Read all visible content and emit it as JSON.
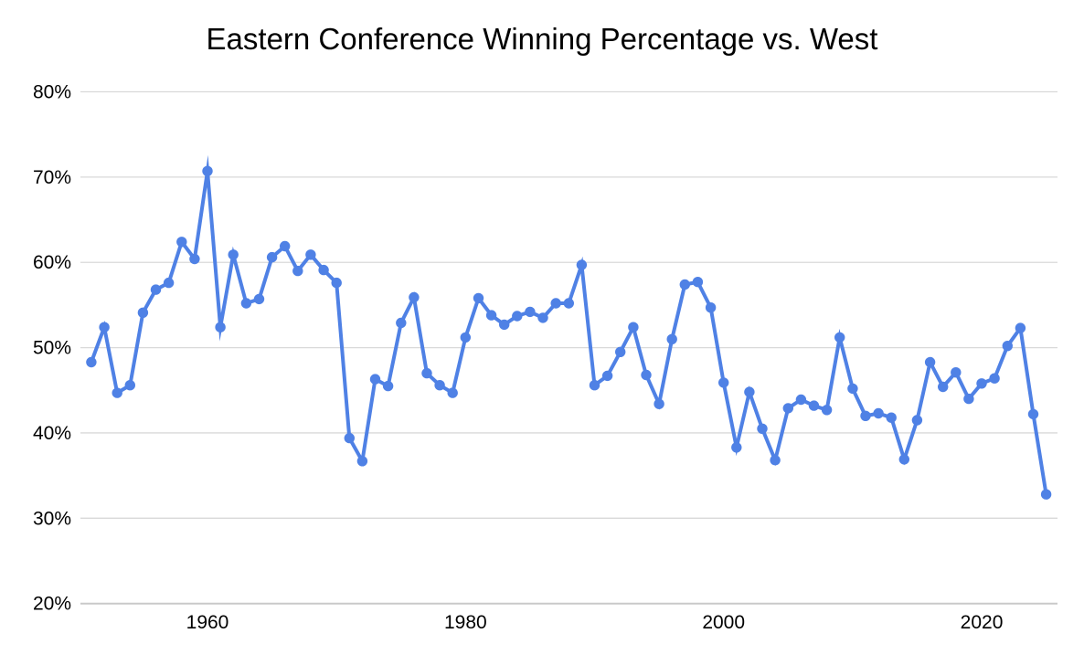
{
  "chart_data": {
    "type": "line",
    "title": "Eastern Conference Winning Percentage vs. West",
    "series": [
      {
        "name": "Eastern Conference winning percentage vs. West",
        "values": [
          48.3,
          52.4,
          44.7,
          45.6,
          54.1,
          56.8,
          57.6,
          62.4,
          60.4,
          70.7,
          52.4,
          60.9,
          55.2,
          55.7,
          60.6,
          61.9,
          59.0,
          60.9,
          59.1,
          57.6,
          39.4,
          36.7,
          46.3,
          45.5,
          52.9,
          55.9,
          47.0,
          45.6,
          44.7,
          51.2,
          55.8,
          53.8,
          52.7,
          53.7,
          54.2,
          53.5,
          55.2,
          55.2,
          59.7,
          45.6,
          46.7,
          49.5,
          52.4,
          46.8,
          43.4,
          51.0,
          57.4,
          57.7,
          54.7,
          45.9,
          38.3,
          44.8,
          40.5,
          36.8,
          42.9,
          43.9,
          43.2,
          42.7,
          51.2,
          45.2,
          42.0,
          42.3,
          41.8,
          36.9,
          41.5,
          48.3,
          45.4,
          47.1,
          44.0,
          45.8,
          46.4,
          50.2,
          52.3,
          42.2,
          32.8
        ]
      }
    ],
    "x": [
      1951,
      1952,
      1953,
      1954,
      1955,
      1956,
      1957,
      1958,
      1959,
      1960,
      1961,
      1962,
      1963,
      1964,
      1965,
      1966,
      1967,
      1968,
      1969,
      1970,
      1971,
      1972,
      1973,
      1974,
      1975,
      1976,
      1977,
      1978,
      1979,
      1980,
      1981,
      1982,
      1983,
      1984,
      1985,
      1986,
      1987,
      1988,
      1989,
      1990,
      1991,
      1992,
      1993,
      1994,
      1995,
      1996,
      1997,
      1998,
      1999,
      2000,
      2001,
      2002,
      2003,
      2004,
      2005,
      2006,
      2007,
      2008,
      2009,
      2010,
      2011,
      2012,
      2013,
      2014,
      2015,
      2016,
      2017,
      2018,
      2019,
      2020,
      2021,
      2022,
      2023,
      2024,
      2025
    ],
    "xlabel": "",
    "ylabel": "",
    "ylim": [
      20,
      80
    ],
    "xlim": [
      1950,
      2026
    ],
    "y_ticks": [
      {
        "value": 80,
        "label": "80%"
      },
      {
        "value": 70,
        "label": "70%"
      },
      {
        "value": 60,
        "label": "60%"
      },
      {
        "value": 50,
        "label": "50%"
      },
      {
        "value": 40,
        "label": "40%"
      },
      {
        "value": 30,
        "label": "30%"
      },
      {
        "value": 20,
        "label": "20%"
      }
    ],
    "x_ticks": [
      {
        "value": 1960,
        "label": "1960"
      },
      {
        "value": 1980,
        "label": "1980"
      },
      {
        "value": 2000,
        "label": "2000"
      },
      {
        "value": 2020,
        "label": "2020"
      }
    ],
    "grid": true,
    "legend": "none",
    "marker": "circle",
    "colors": {
      "line": "#4f81e5",
      "grid": "#d9d9d9",
      "axis": "#c9c9c9",
      "text": "#000000",
      "background": "#ffffff"
    }
  }
}
